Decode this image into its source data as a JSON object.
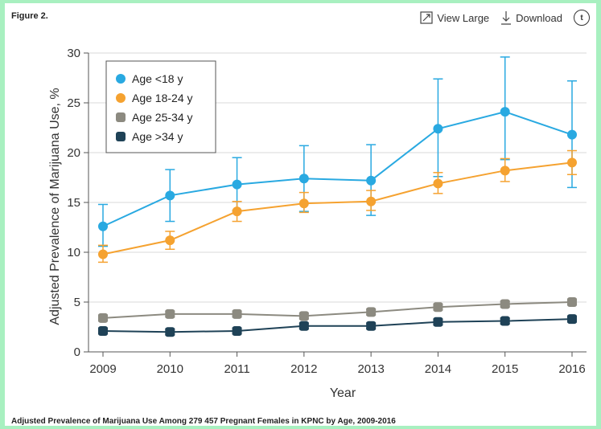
{
  "figure_label": "Figure 2.",
  "toolbar": {
    "view_large": "View Large",
    "download": "Download",
    "twitter_icon": "twitter-icon"
  },
  "caption": "Adjusted Prevalence of Marijuana Use Among 279 457 Pregnant Females in KPNC by Age, 2009-2016",
  "chart_data": {
    "type": "line",
    "x": [
      2009,
      2010,
      2011,
      2012,
      2013,
      2014,
      2015,
      2016
    ],
    "xlabel": "Year",
    "ylabel": "Adjusted Prevalence of Marijuana Use, %",
    "ylim": [
      0,
      30
    ],
    "yticks": [
      0,
      5,
      10,
      15,
      20,
      25,
      30
    ],
    "grid": "horizontal",
    "legend_position": "top-left",
    "series": [
      {
        "name": "Age <18 y",
        "color": "#29a9e1",
        "values": [
          12.6,
          15.7,
          16.8,
          17.4,
          17.2,
          22.4,
          24.1,
          21.8
        ],
        "ci_low": [
          10.6,
          13.1,
          14.2,
          14.1,
          13.7,
          17.6,
          19.3,
          16.5
        ],
        "ci_high": [
          14.8,
          18.3,
          19.5,
          20.7,
          20.8,
          27.4,
          29.6,
          27.2
        ]
      },
      {
        "name": "Age 18-24 y",
        "color": "#f5a230",
        "values": [
          9.8,
          11.2,
          14.1,
          14.9,
          15.1,
          16.9,
          18.2,
          19.0
        ],
        "ci_low": [
          9.0,
          10.3,
          13.1,
          14.0,
          14.2,
          15.9,
          17.1,
          17.8
        ],
        "ci_high": [
          10.7,
          12.1,
          15.1,
          16.0,
          16.2,
          18.0,
          19.4,
          20.2
        ]
      },
      {
        "name": "Age 25-34 y",
        "color": "#8c8a80",
        "values": [
          3.4,
          3.8,
          3.8,
          3.6,
          4.0,
          4.5,
          4.8,
          5.0
        ],
        "ci_low": [
          3.1,
          3.5,
          3.5,
          3.3,
          3.7,
          4.2,
          4.5,
          4.7
        ],
        "ci_high": [
          3.7,
          4.1,
          4.1,
          3.9,
          4.3,
          4.8,
          5.1,
          5.3
        ]
      },
      {
        "name": "Age >34 y",
        "color": "#1f4257",
        "values": [
          2.1,
          2.0,
          2.1,
          2.6,
          2.6,
          3.0,
          3.1,
          3.3
        ],
        "ci_low": [
          1.8,
          1.7,
          1.8,
          2.3,
          2.3,
          2.7,
          2.8,
          3.0
        ],
        "ci_high": [
          2.4,
          2.3,
          2.4,
          2.9,
          2.9,
          3.3,
          3.4,
          3.6
        ]
      }
    ]
  }
}
